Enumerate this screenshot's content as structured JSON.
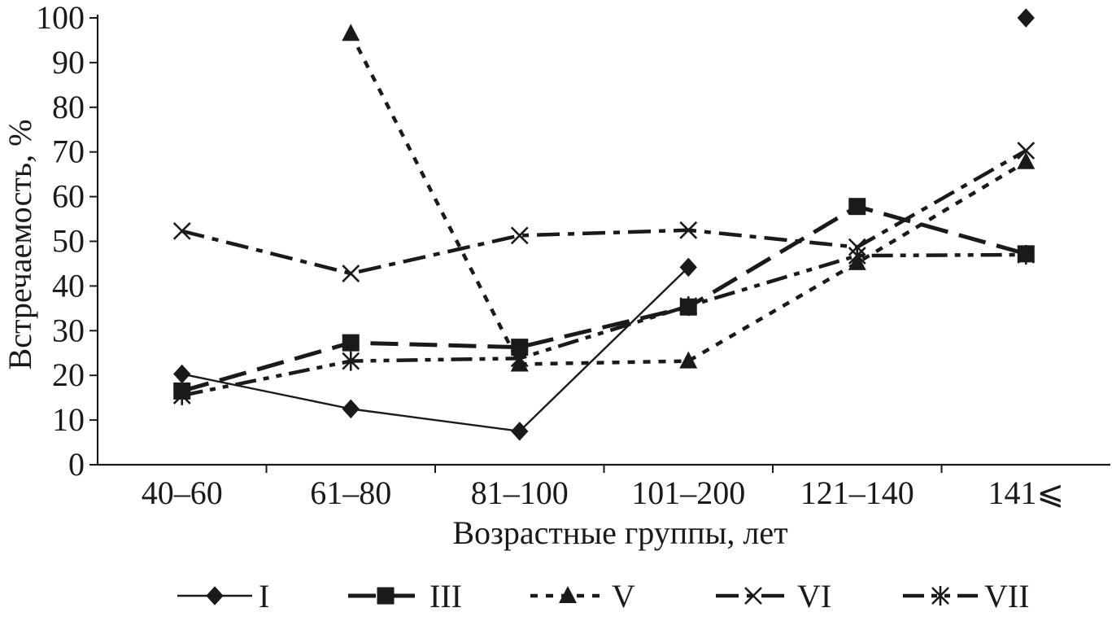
{
  "chart_data": {
    "type": "line",
    "xlabel": "Возрастные группы, лет",
    "ylabel": "Встречаемость, %",
    "categories": [
      "40–60",
      "61–80",
      "81–100",
      "101–200",
      "121–140",
      "141⩽"
    ],
    "ylim": [
      0,
      100
    ],
    "yticks": [
      0,
      10,
      20,
      30,
      40,
      50,
      60,
      70,
      80,
      90,
      100
    ],
    "grid": false,
    "legend_position": "bottom",
    "series": [
      {
        "name": "I",
        "values": [
          20.3,
          12.5,
          7.5,
          44.2,
          null,
          100
        ],
        "marker": "diamond",
        "line_style": "solid"
      },
      {
        "name": "III",
        "values": [
          16.5,
          27.3,
          26.3,
          35.3,
          57.8,
          47.2
        ],
        "marker": "square",
        "line_style": "long-dash"
      },
      {
        "name": "V",
        "values": [
          null,
          96.5,
          22.5,
          23.2,
          45.2,
          67.8
        ],
        "marker": "triangle",
        "line_style": "dotted"
      },
      {
        "name": "VI",
        "values": [
          52.3,
          42.8,
          51.3,
          52.5,
          48.7,
          70.3
        ],
        "marker": "x",
        "line_style": "dash-dot"
      },
      {
        "name": "VII",
        "values": [
          15.5,
          23.2,
          23.8,
          35.5,
          46.8,
          47.0
        ],
        "marker": "asterisk",
        "line_style": "dash-dot-dot"
      }
    ]
  }
}
